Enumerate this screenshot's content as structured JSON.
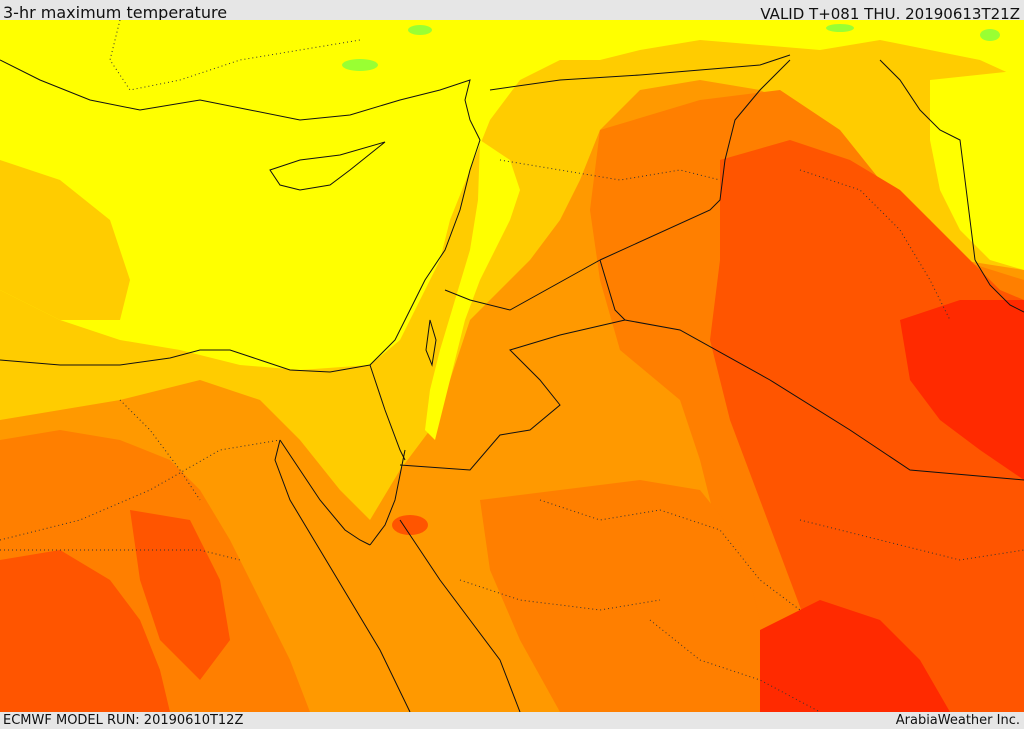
{
  "header": {
    "title": "3-hr maximum temperature",
    "valid": "VALID T+081 THU. 20190613T21Z"
  },
  "footer": {
    "model_run": "ECMWF MODEL RUN: 20190610T12Z",
    "credit": "ArabiaWeather Inc."
  },
  "colors": {
    "yellow": "#ffff00",
    "light_orange": "#ffcc00",
    "orange": "#ff9900",
    "dark_orange": "#ff7f00",
    "red_orange": "#ff5500",
    "red": "#ff2a00",
    "green": "#99ff33",
    "border": "#111111"
  }
}
